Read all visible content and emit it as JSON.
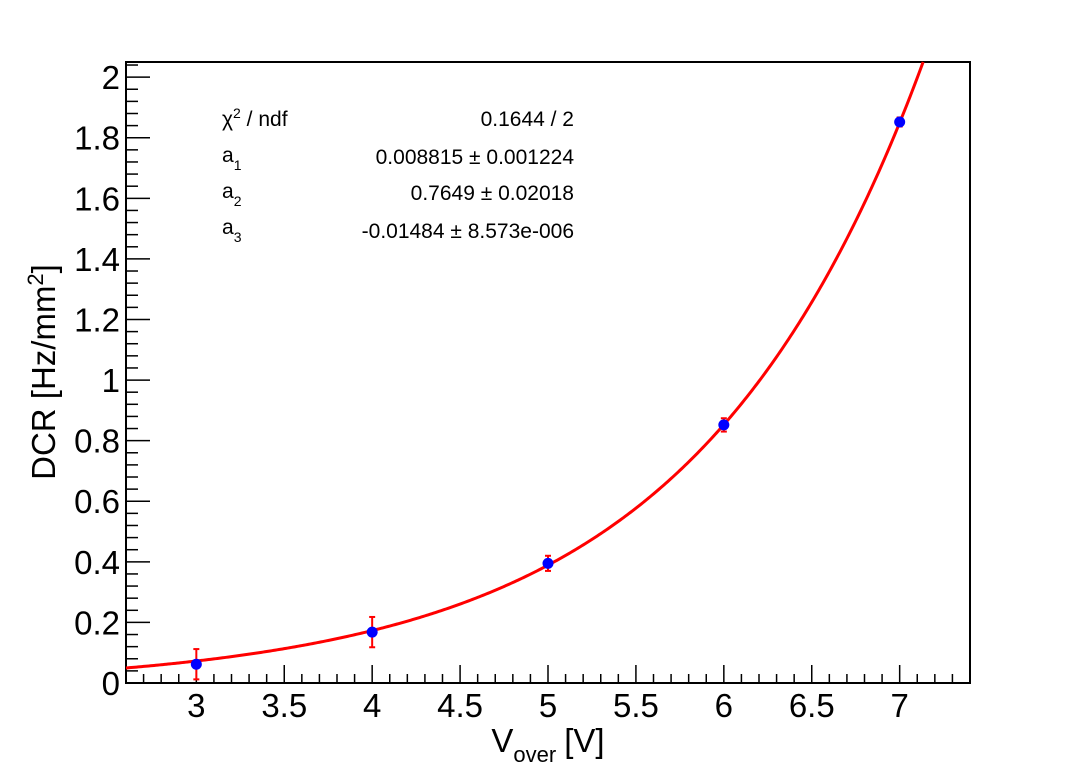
{
  "chart_data": {
    "type": "scatter",
    "xlabel": "V",
    "xlabel_sub": "over",
    "xlabel_unit": "[V]",
    "ylabel": "DCR [Hz/mm",
    "ylabel_sup": "2",
    "ylabel_end": "]",
    "xlim": [
      2.6,
      7.4
    ],
    "ylim": [
      0,
      2.05
    ],
    "x_ticks": [
      "3",
      "3.5",
      "4",
      "4.5",
      "5",
      "5.5",
      "6",
      "6.5",
      "7"
    ],
    "y_ticks": [
      "0",
      "0.2",
      "0.4",
      "0.6",
      "0.8",
      "1",
      "1.2",
      "1.4",
      "1.6",
      "1.8",
      "2"
    ],
    "grid": false,
    "series": [
      {
        "points": [
          {
            "x": 3,
            "y": 0.062,
            "err": 0.05
          },
          {
            "x": 4,
            "y": 0.168,
            "err": 0.05
          },
          {
            "x": 5,
            "y": 0.395,
            "err": 0.025
          },
          {
            "x": 6,
            "y": 0.852,
            "err": 0.022
          },
          {
            "x": 7,
            "y": 1.852,
            "err": 0.015
          }
        ],
        "color": "#0000ff",
        "error_color": "#ff0000"
      }
    ],
    "fit": {
      "color": "#ff0000",
      "a1": 0.008815,
      "a2": 0.7649,
      "a3": -0.01484
    },
    "stats_box": [
      {
        "label": "χ",
        "sup": "2",
        "label_rest": " / ndf",
        "sub": "",
        "value": "0.1644 / 2"
      },
      {
        "label": "a",
        "sup": "",
        "label_rest": "",
        "sub": "1",
        "value": "0.008815 ± 0.001224"
      },
      {
        "label": "a",
        "sup": "",
        "label_rest": "",
        "sub": "2",
        "value": "0.7649 ± 0.02018"
      },
      {
        "label": "a",
        "sup": "",
        "label_rest": "",
        "sub": "3",
        "value": "-0.01484 ± 8.573e-006"
      }
    ]
  }
}
